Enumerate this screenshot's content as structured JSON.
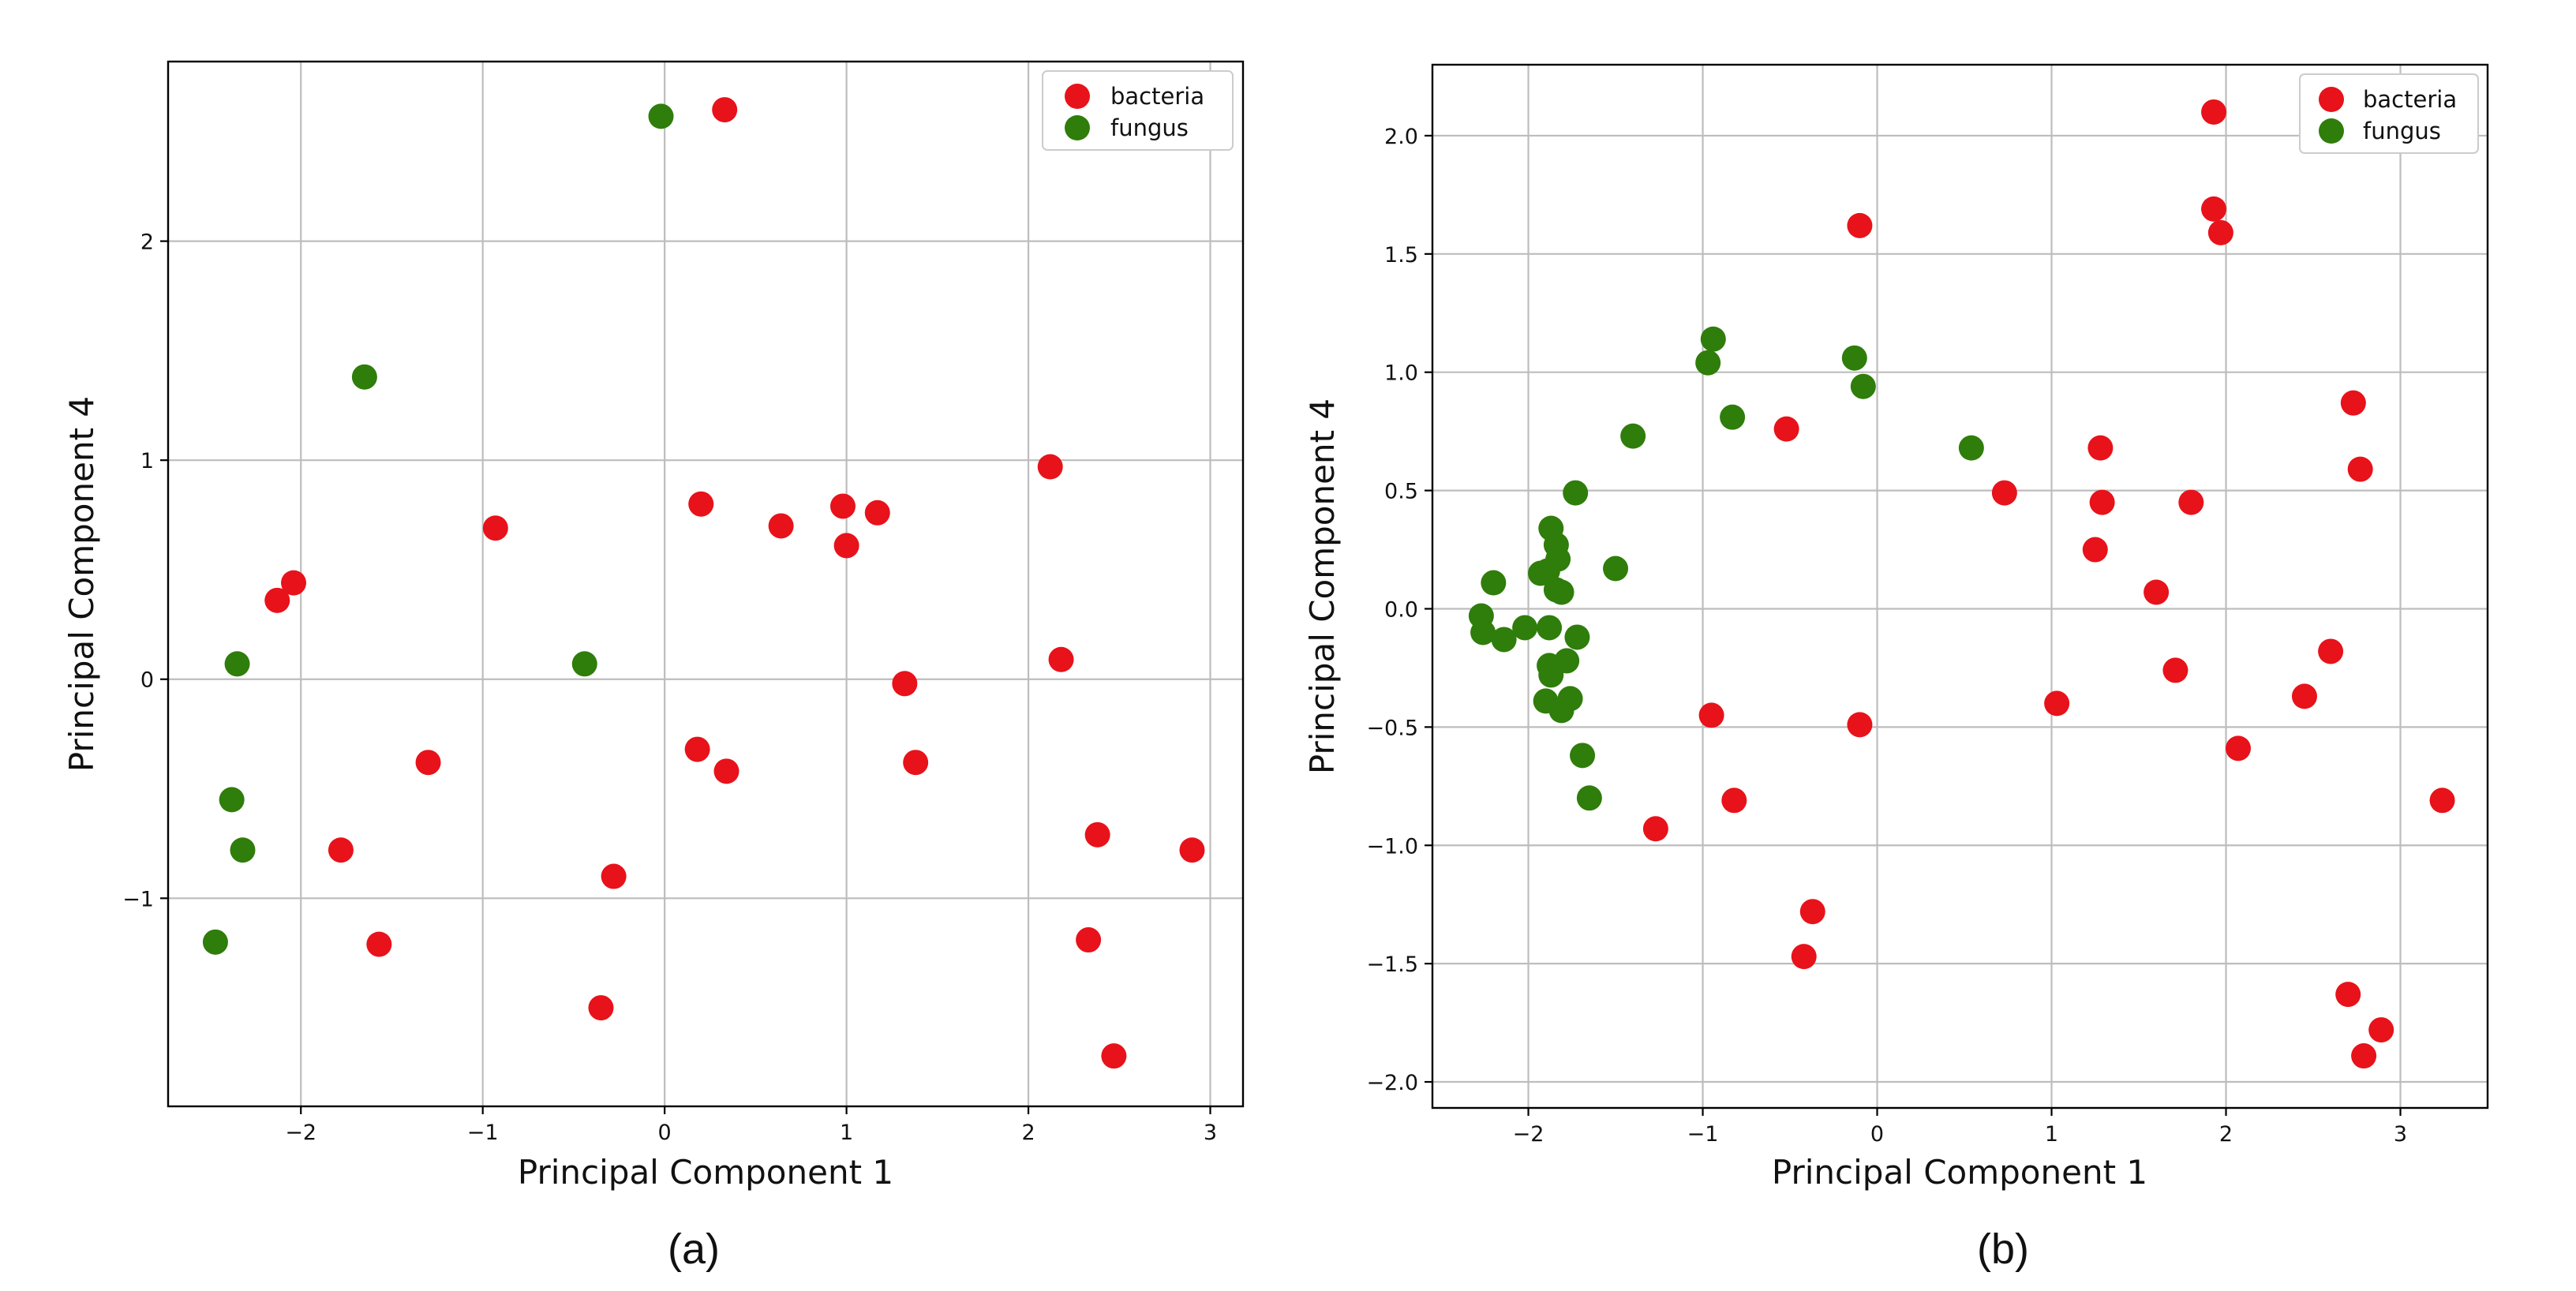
{
  "colors": {
    "bacteria": "#e8121a",
    "fungus": "#2f7d0b"
  },
  "chart_data": [
    {
      "type": "scatter",
      "caption": "(a)",
      "xlabel": "Principal Component 1",
      "ylabel": "Principal Component 4",
      "xlim": [
        -2.73,
        3.18
      ],
      "ylim": [
        -1.95,
        2.82
      ],
      "xticks": [
        -2,
        -1,
        0,
        1,
        2,
        3
      ],
      "xtick_labels": [
        "−2",
        "−1",
        "0",
        "1",
        "2",
        "3"
      ],
      "yticks": [
        -1,
        0,
        1,
        2
      ],
      "ytick_labels": [
        "−1",
        "0",
        "1",
        "2"
      ],
      "grid": true,
      "legend": "top-right",
      "series": [
        {
          "name": "bacteria",
          "color_key": "bacteria",
          "points": [
            [
              0.33,
              2.6
            ],
            [
              2.12,
              0.97
            ],
            [
              0.2,
              0.8
            ],
            [
              0.98,
              0.79
            ],
            [
              1.17,
              0.76
            ],
            [
              0.64,
              0.7
            ],
            [
              1.0,
              0.61
            ],
            [
              -0.93,
              0.69
            ],
            [
              -2.04,
              0.44
            ],
            [
              -2.13,
              0.36
            ],
            [
              2.18,
              0.09
            ],
            [
              1.32,
              -0.02
            ],
            [
              0.18,
              -0.32
            ],
            [
              0.34,
              -0.42
            ],
            [
              1.38,
              -0.38
            ],
            [
              -1.3,
              -0.38
            ],
            [
              -1.78,
              -0.78
            ],
            [
              2.9,
              -0.78
            ],
            [
              2.38,
              -0.71
            ],
            [
              -0.28,
              -0.9
            ],
            [
              -1.57,
              -1.21
            ],
            [
              2.33,
              -1.19
            ],
            [
              -0.35,
              -1.5
            ],
            [
              2.47,
              -1.72
            ]
          ]
        },
        {
          "name": "fungus",
          "color_key": "fungus",
          "points": [
            [
              -0.02,
              2.57
            ],
            [
              -1.65,
              1.38
            ],
            [
              -2.35,
              0.07
            ],
            [
              -0.44,
              0.07
            ],
            [
              -2.38,
              -0.55
            ],
            [
              -2.32,
              -0.78
            ],
            [
              -2.47,
              -1.2
            ]
          ]
        }
      ]
    },
    {
      "type": "scatter",
      "caption": "(b)",
      "xlabel": "Principal Component 1",
      "ylabel": "Principal Component 4",
      "xlim": [
        -2.55,
        3.5
      ],
      "ylim": [
        -2.11,
        2.3
      ],
      "xticks": [
        -2,
        -1,
        0,
        1,
        2,
        3
      ],
      "xtick_labels": [
        "−2",
        "−1",
        "0",
        "1",
        "2",
        "3"
      ],
      "yticks": [
        -2.0,
        -1.5,
        -1.0,
        -0.5,
        0.0,
        0.5,
        1.0,
        1.5,
        2.0
      ],
      "ytick_labels": [
        "−2.0",
        "−1.5",
        "−1.0",
        "−0.5",
        "0.0",
        "0.5",
        "1.0",
        "1.5",
        "2.0"
      ],
      "grid": true,
      "legend": "top-right",
      "series": [
        {
          "name": "bacteria",
          "color_key": "bacteria",
          "points": [
            [
              1.93,
              2.1
            ],
            [
              1.93,
              1.69
            ],
            [
              1.97,
              1.59
            ],
            [
              -0.1,
              1.62
            ],
            [
              2.73,
              0.87
            ],
            [
              2.77,
              0.59
            ],
            [
              -0.52,
              0.76
            ],
            [
              1.28,
              0.68
            ],
            [
              0.73,
              0.49
            ],
            [
              1.29,
              0.45
            ],
            [
              1.8,
              0.45
            ],
            [
              1.25,
              0.25
            ],
            [
              1.6,
              0.07
            ],
            [
              1.71,
              -0.26
            ],
            [
              2.6,
              -0.18
            ],
            [
              2.45,
              -0.37
            ],
            [
              1.03,
              -0.4
            ],
            [
              -0.95,
              -0.45
            ],
            [
              -0.1,
              -0.49
            ],
            [
              2.07,
              -0.59
            ],
            [
              -0.82,
              -0.81
            ],
            [
              3.24,
              -0.81
            ],
            [
              -1.27,
              -0.93
            ],
            [
              -0.37,
              -1.28
            ],
            [
              -0.42,
              -1.47
            ],
            [
              2.7,
              -1.63
            ],
            [
              2.89,
              -1.78
            ],
            [
              2.79,
              -1.89
            ]
          ]
        },
        {
          "name": "fungus",
          "color_key": "fungus",
          "points": [
            [
              -0.94,
              1.14
            ],
            [
              -0.97,
              1.04
            ],
            [
              -0.13,
              1.06
            ],
            [
              -0.08,
              0.94
            ],
            [
              -0.83,
              0.81
            ],
            [
              -1.4,
              0.73
            ],
            [
              0.54,
              0.68
            ],
            [
              -1.73,
              0.49
            ],
            [
              -1.87,
              0.34
            ],
            [
              -1.84,
              0.27
            ],
            [
              -1.83,
              0.21
            ],
            [
              -1.89,
              0.16
            ],
            [
              -1.93,
              0.15
            ],
            [
              -1.5,
              0.17
            ],
            [
              -2.2,
              0.11
            ],
            [
              -1.84,
              0.08
            ],
            [
              -1.81,
              0.07
            ],
            [
              -2.27,
              -0.03
            ],
            [
              -2.26,
              -0.1
            ],
            [
              -2.14,
              -0.13
            ],
            [
              -2.02,
              -0.08
            ],
            [
              -1.88,
              -0.08
            ],
            [
              -1.72,
              -0.12
            ],
            [
              -1.88,
              -0.24
            ],
            [
              -1.87,
              -0.28
            ],
            [
              -1.78,
              -0.22
            ],
            [
              -1.9,
              -0.39
            ],
            [
              -1.76,
              -0.38
            ],
            [
              -1.81,
              -0.43
            ],
            [
              -1.69,
              -0.62
            ],
            [
              -1.65,
              -0.8
            ]
          ]
        }
      ]
    }
  ]
}
